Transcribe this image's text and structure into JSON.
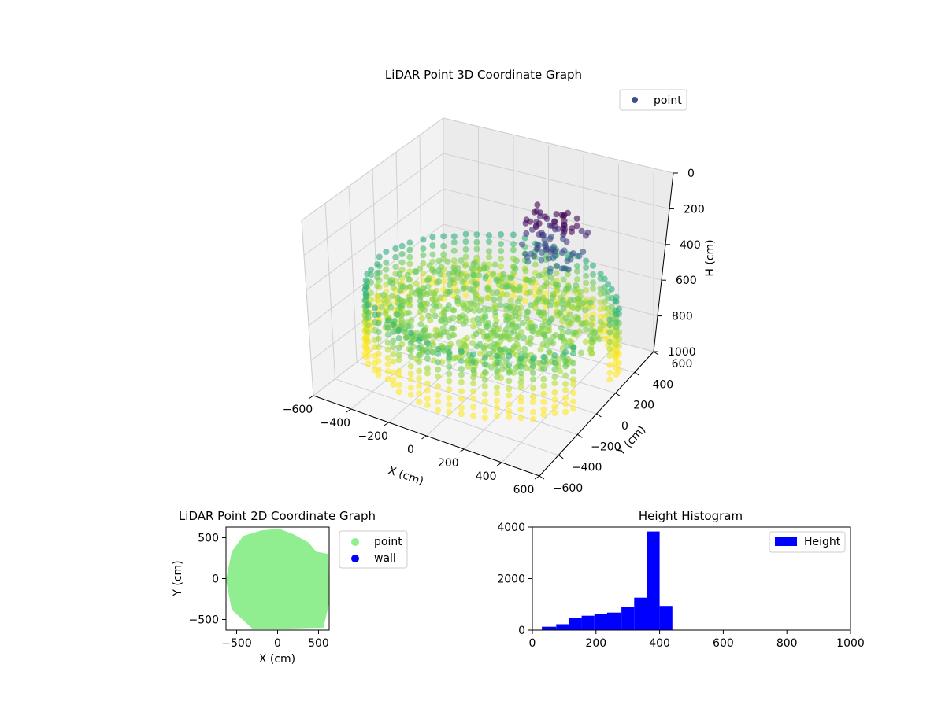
{
  "chart_data": [
    {
      "type": "scatter",
      "projection": "3d",
      "title": "LiDAR Point 3D Coordinate Graph",
      "xlabel": "X (cm)",
      "ylabel": "Y (cm)",
      "zlabel": "H (cm)",
      "xlim": [
        -600,
        600
      ],
      "ylim": [
        -600,
        600
      ],
      "zlim": [
        1000,
        0
      ],
      "z_inverted": true,
      "xticks": [
        -600,
        -400,
        -200,
        0,
        200,
        400,
        600
      ],
      "yticks": [
        -600,
        -400,
        -200,
        0,
        200,
        400,
        600
      ],
      "zticks": [
        0,
        200,
        400,
        600,
        800,
        1000
      ],
      "colormap": "viridis",
      "legend": {
        "entries": [
          "point"
        ],
        "placement": "upper-right",
        "marker_color": "#3b4f8c"
      },
      "grid": true
    },
    {
      "type": "scatter",
      "title": "LiDAR Point 2D Coordinate Graph",
      "xlabel": "X (cm)",
      "ylabel": "Y (cm)",
      "xlim": [
        -630,
        630
      ],
      "ylim": [
        -630,
        630
      ],
      "xticks": [
        -500,
        0,
        500
      ],
      "yticks": [
        -500,
        0,
        500
      ],
      "series": [
        {
          "name": "point",
          "color": "#90ee90"
        },
        {
          "name": "wall",
          "color": "#0000ff"
        }
      ],
      "legend": {
        "placement": "outside-right"
      },
      "grid": false
    },
    {
      "type": "bar",
      "subtype": "histogram",
      "title": "Height Histogram",
      "xlim": [
        0,
        1000
      ],
      "ylim": [
        0,
        4000
      ],
      "xticks": [
        0,
        200,
        400,
        600,
        800,
        1000
      ],
      "yticks": [
        0,
        2000,
        4000
      ],
      "bin_edges": [
        30,
        75,
        115,
        155,
        195,
        235,
        280,
        320,
        360,
        400,
        440
      ],
      "values": [
        130,
        230,
        470,
        560,
        610,
        680,
        900,
        1260,
        3830,
        940
      ],
      "series": [
        {
          "name": "Height",
          "color": "#0000ff"
        }
      ],
      "legend": {
        "placement": "upper-right"
      },
      "grid": false
    }
  ]
}
